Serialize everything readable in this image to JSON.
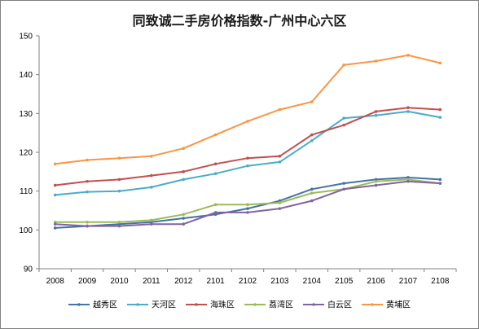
{
  "chart_data": {
    "type": "line",
    "title": "同致诚二手房价格指数-广州中心六区",
    "xlabel": "",
    "ylabel": "",
    "ylim": [
      90,
      150
    ],
    "yticks": [
      "150",
      "140",
      "130",
      "120",
      "110",
      "100",
      "90"
    ],
    "ytick_values": [
      150,
      140,
      130,
      120,
      110,
      100,
      90
    ],
    "categories": [
      "2008",
      "2009",
      "2010",
      "2011",
      "2012",
      "2101",
      "2102",
      "2103",
      "2104",
      "2105",
      "2106",
      "2107",
      "2108"
    ],
    "grid": false,
    "legend_position": "bottom",
    "series": [
      {
        "name": "越秀区",
        "color": "#4572a7",
        "values": [
          100.5,
          101,
          101.5,
          102,
          103,
          104,
          105.5,
          107.5,
          110.5,
          112,
          113,
          113.5,
          113
        ]
      },
      {
        "name": "天河区",
        "color": "#4bacc6",
        "values": [
          109,
          109.8,
          110,
          111,
          113,
          114.5,
          116.5,
          117.5,
          123,
          128.8,
          129.5,
          130.5,
          129
        ]
      },
      {
        "name": "海珠区",
        "color": "#c0504d",
        "values": [
          111.5,
          112.5,
          113,
          114,
          115,
          117,
          118.5,
          119,
          124.5,
          127,
          130.5,
          131.5,
          131
        ]
      },
      {
        "name": "荔湾区",
        "color": "#9bbb59",
        "values": [
          102,
          102,
          102,
          102.5,
          104,
          106.5,
          106.5,
          107,
          109.5,
          110.5,
          112.5,
          113,
          112
        ]
      },
      {
        "name": "白云区",
        "color": "#8064a2",
        "values": [
          101.5,
          101,
          101,
          101.5,
          101.5,
          104.5,
          104.5,
          105.5,
          107.5,
          110.5,
          111.5,
          112.5,
          112
        ]
      },
      {
        "name": "黄埔区",
        "color": "#f79646",
        "values": [
          117,
          118,
          118.5,
          119,
          121,
          124.5,
          128,
          131,
          133,
          142.5,
          143.5,
          145,
          143
        ]
      }
    ]
  }
}
